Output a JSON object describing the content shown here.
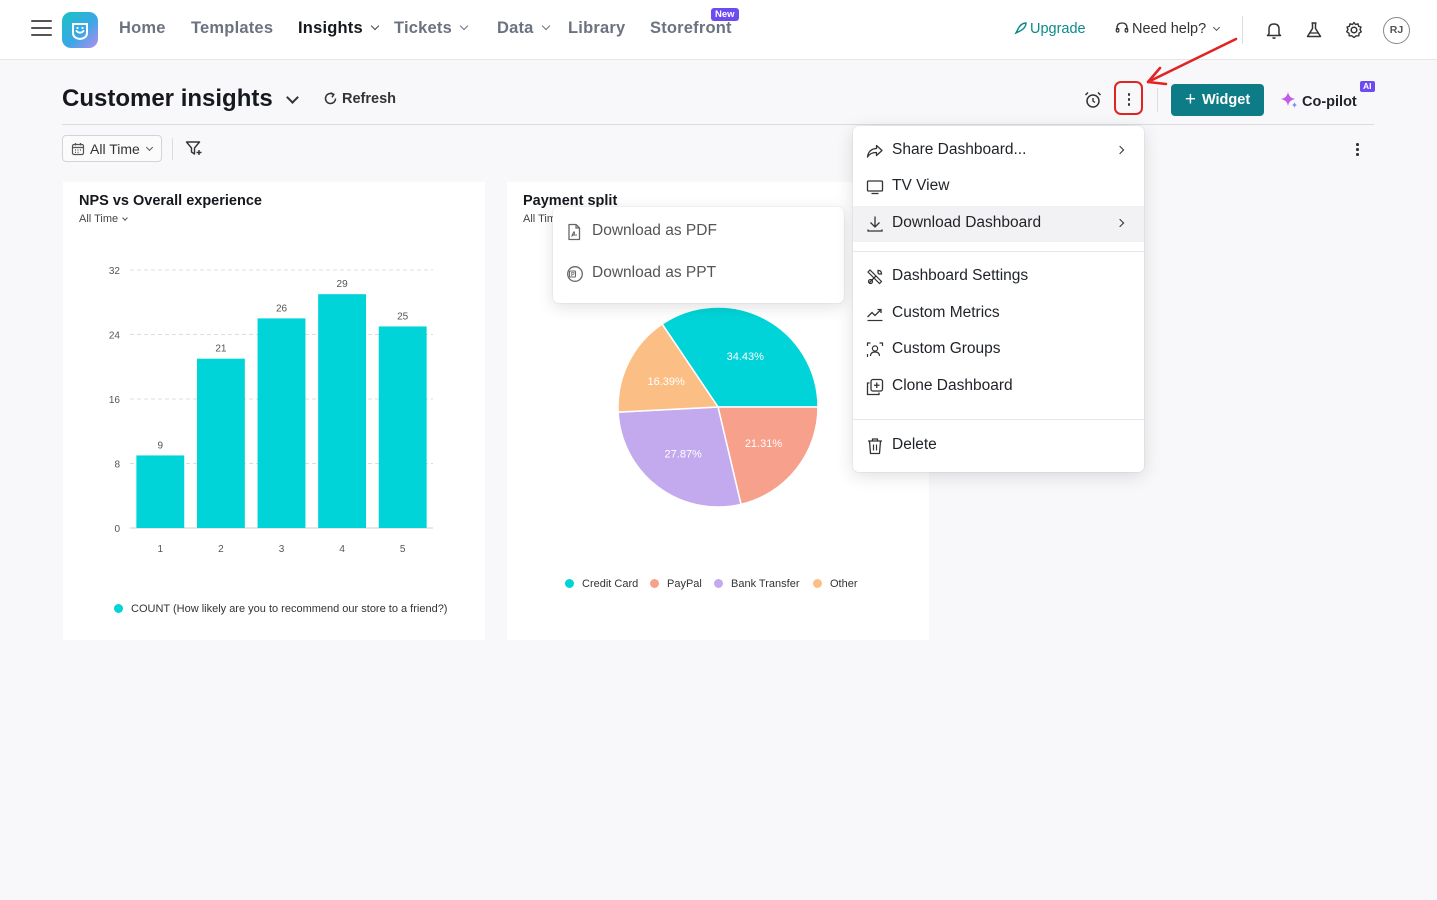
{
  "nav": {
    "items": [
      {
        "label": "Home"
      },
      {
        "label": "Templates"
      },
      {
        "label": "Insights"
      },
      {
        "label": "Tickets"
      },
      {
        "label": "Data"
      },
      {
        "label": "Library"
      },
      {
        "label": "Storefront"
      }
    ],
    "new_badge": "New",
    "upgrade": "Upgrade",
    "need_help": "Need help?",
    "avatar": "RJ",
    "active_item": "Insights",
    "icons": [
      "menu-icon",
      "app-logo",
      "bell-icon",
      "flask-icon",
      "gear-icon"
    ]
  },
  "header": {
    "title": "Customer insights",
    "refresh": "Refresh",
    "widget": "Widget",
    "copilot": "Co-pilot",
    "ai_badge": "AI"
  },
  "filters": {
    "time": "All Time"
  },
  "cards": [
    {
      "title": "NPS vs Overall experience",
      "subtitle": "All Time",
      "legend": "COUNT (How likely are you to recommend our store to a friend?)"
    },
    {
      "title": "Payment split",
      "subtitle": "All Time"
    }
  ],
  "menu": {
    "items": [
      {
        "label": "Share Dashboard...",
        "icon": "share-icon",
        "submenu": true
      },
      {
        "label": "TV View",
        "icon": "monitor-icon",
        "submenu": false
      },
      {
        "label": "Download Dashboard",
        "icon": "download-icon",
        "submenu": true,
        "highlighted": true
      },
      {
        "label": "Dashboard Settings",
        "icon": "tools-icon",
        "submenu": false
      },
      {
        "label": "Custom Metrics",
        "icon": "trend-icon",
        "submenu": false
      },
      {
        "label": "Custom Groups",
        "icon": "groups-icon",
        "submenu": false
      },
      {
        "label": "Clone Dashboard",
        "icon": "clone-icon",
        "submenu": false
      },
      {
        "label": "Delete",
        "icon": "trash-icon",
        "submenu": false
      }
    ]
  },
  "submenu": {
    "items": [
      {
        "label": "Download as PDF",
        "icon": "pdf-file-icon"
      },
      {
        "label": "Download as PPT",
        "icon": "ppt-file-icon"
      }
    ]
  },
  "colors": {
    "teal": "#00d4d8",
    "brand_button": "#0d7c86",
    "annotation_red": "#e02424",
    "peach": "#fbbf86",
    "salmon": "#f7a08c",
    "lavender": "#c3a9ee"
  },
  "chart_data": [
    {
      "type": "bar",
      "title": "NPS vs Overall experience",
      "categories": [
        "1",
        "2",
        "3",
        "4",
        "5"
      ],
      "series": [
        {
          "name": "COUNT (How likely are you to recommend our store to a friend?)",
          "values": [
            9,
            21,
            26,
            29,
            25
          ]
        }
      ],
      "ylim": [
        0,
        32
      ],
      "yticks": [
        0,
        8,
        16,
        24,
        32
      ],
      "grid": true,
      "legend": "bottom"
    },
    {
      "type": "pie",
      "title": "Payment split",
      "labels": [
        "Credit Card",
        "PayPal",
        "Bank Transfer",
        "Other"
      ],
      "values": [
        34.43,
        21.31,
        27.87,
        16.39
      ],
      "value_labels": [
        "34.43%",
        "21.31%",
        "27.87%",
        "16.39%"
      ],
      "colors": [
        "#00d4d8",
        "#f7a08c",
        "#c3a9ee",
        "#fbbf86"
      ],
      "legend": "bottom"
    }
  ]
}
